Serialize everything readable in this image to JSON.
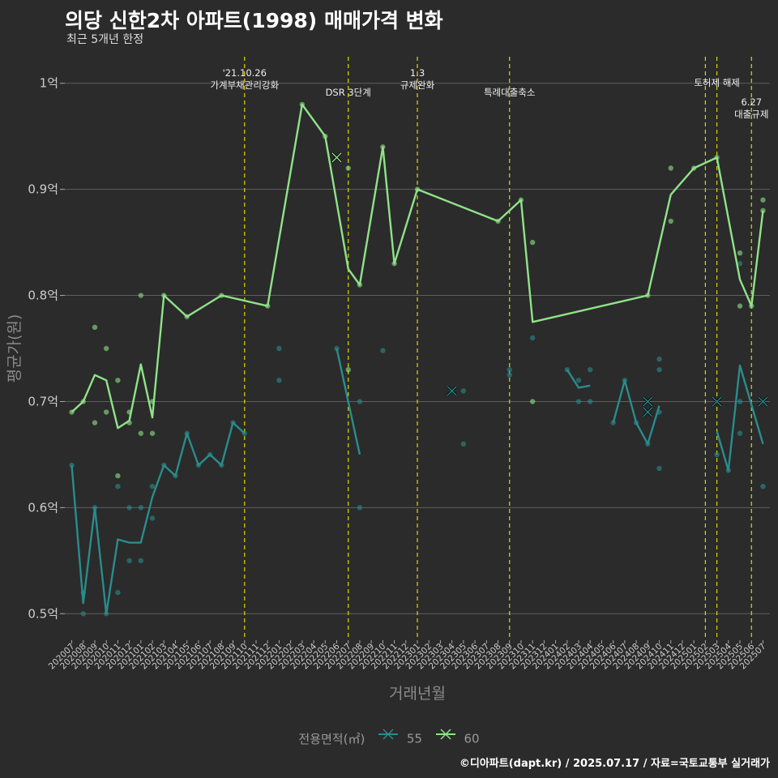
{
  "header": {
    "title": "의당 신한2차 아파트(1998) 매매가격 변화",
    "subtitle": "최근 5개년 한정",
    "caption": "©디아파트(dapt.kr) / 2025.07.17 / 자료=국토교통부 실거래가"
  },
  "legend": {
    "title": "전용면적(㎡)"
  },
  "chart_data": {
    "type": "line",
    "xlabel": "거래년월",
    "ylabel": "평균가(원)",
    "ylim": [
      0.475,
      1.025
    ],
    "y_ticks": [
      0.5,
      0.6,
      0.7,
      0.8,
      0.9,
      1.0
    ],
    "y_tick_labels": [
      "0.5억",
      "0.6억",
      "0.7억",
      "0.8억",
      "0.9억",
      "1억"
    ],
    "categories": [
      "202007",
      "202008",
      "202009",
      "202010",
      "202011",
      "202012",
      "202101",
      "202102",
      "202103",
      "202104",
      "202105",
      "202106",
      "202107",
      "202108",
      "202109",
      "202110",
      "202111",
      "202112",
      "202201",
      "202202",
      "202203",
      "202204",
      "202205",
      "202206",
      "202207",
      "202208",
      "202209",
      "202210",
      "202211",
      "202212",
      "202301",
      "202302",
      "202303",
      "202304",
      "202305",
      "202306",
      "202307",
      "202308",
      "202309",
      "202310",
      "202311",
      "202312",
      "202401",
      "202402",
      "202403",
      "202404",
      "202405",
      "202406",
      "202407",
      "202408",
      "202409",
      "202410",
      "202411",
      "202412",
      "202501",
      "202502",
      "202503",
      "202504",
      "202505",
      "202506",
      "202507"
    ],
    "series": [
      {
        "name": "55",
        "color": "#2a8c8c",
        "line": [
          [
            [
              "202007",
              0.64
            ],
            [
              "202008",
              0.51
            ],
            [
              "202009",
              0.6
            ],
            [
              "202010",
              0.5
            ],
            [
              "202011",
              0.57
            ],
            [
              "202012",
              0.567
            ],
            [
              "202101",
              0.567
            ],
            [
              "202102",
              0.61
            ],
            [
              "202103",
              0.64
            ],
            [
              "202104",
              0.63
            ],
            [
              "202105",
              0.67
            ],
            [
              "202106",
              0.64
            ],
            [
              "202107",
              0.65
            ],
            [
              "202108",
              0.64
            ],
            [
              "202109",
              0.68
            ],
            [
              "202110",
              0.67
            ]
          ],
          [
            [
              "202206",
              0.75
            ],
            [
              "202208",
              0.65
            ]
          ],
          [
            [
              "202402",
              0.73
            ],
            [
              "202403",
              0.713
            ],
            [
              "202404",
              0.715
            ]
          ],
          [
            [
              "202406",
              0.68
            ],
            [
              "202407",
              0.72
            ],
            [
              "202408",
              0.68
            ],
            [
              "202409",
              0.66
            ],
            [
              "202410",
              0.696
            ]
          ],
          [
            [
              "202503",
              0.672
            ],
            [
              "202504",
              0.635
            ],
            [
              "202505",
              0.734
            ],
            [
              "202507",
              0.66
            ]
          ]
        ],
        "points": [
          [
            "202007",
            0.64
          ],
          [
            "202008",
            0.5
          ],
          [
            "202008",
            0.52
          ],
          [
            "202009",
            0.6
          ],
          [
            "202010",
            0.5
          ],
          [
            "202011",
            0.62
          ],
          [
            "202011",
            0.52
          ],
          [
            "202012",
            0.6
          ],
          [
            "202012",
            0.55
          ],
          [
            "202101",
            0.6
          ],
          [
            "202101",
            0.55
          ],
          [
            "202102",
            0.62
          ],
          [
            "202102",
            0.59
          ],
          [
            "202103",
            0.64
          ],
          [
            "202104",
            0.63
          ],
          [
            "202105",
            0.67
          ],
          [
            "202106",
            0.64
          ],
          [
            "202107",
            0.65
          ],
          [
            "202108",
            0.64
          ],
          [
            "202109",
            0.68
          ],
          [
            "202110",
            0.67
          ],
          [
            "202201",
            0.75
          ],
          [
            "202201",
            0.72
          ],
          [
            "202206",
            0.75
          ],
          [
            "202208",
            0.7
          ],
          [
            "202208",
            0.6
          ],
          [
            "202210",
            0.748
          ],
          [
            "202304",
            0.71
          ],
          [
            "202305",
            0.71
          ],
          [
            "202305",
            0.66
          ],
          [
            "202309",
            0.73
          ],
          [
            "202309",
            0.725
          ],
          [
            "202311",
            0.76
          ],
          [
            "202402",
            0.73
          ],
          [
            "202403",
            0.72
          ],
          [
            "202403",
            0.7
          ],
          [
            "202404",
            0.73
          ],
          [
            "202404",
            0.7
          ],
          [
            "202406",
            0.68
          ],
          [
            "202407",
            0.72
          ],
          [
            "202408",
            0.68
          ],
          [
            "202409",
            0.66
          ],
          [
            "202410",
            0.74
          ],
          [
            "202410",
            0.73
          ],
          [
            "202410",
            0.69
          ],
          [
            "202410",
            0.637
          ],
          [
            "202503",
            0.65
          ],
          [
            "202504",
            0.635
          ],
          [
            "202505",
            0.7
          ],
          [
            "202505",
            0.67
          ],
          [
            "202505",
            0.83
          ],
          [
            "202507",
            0.7
          ],
          [
            "202507",
            0.62
          ]
        ],
        "cancelled": [
          [
            "202304",
            0.71
          ],
          [
            "202409",
            0.7
          ],
          [
            "202409",
            0.69
          ],
          [
            "202503",
            0.7
          ],
          [
            "202507",
            0.7
          ]
        ]
      },
      {
        "name": "60",
        "color": "#8fe388",
        "line": [
          [
            [
              "202007",
              0.69
            ],
            [
              "202008",
              0.7
            ],
            [
              "202009",
              0.725
            ],
            [
              "202010",
              0.72
            ],
            [
              "202011",
              0.675
            ],
            [
              "202012",
              0.682
            ],
            [
              "202101",
              0.735
            ],
            [
              "202102",
              0.685
            ],
            [
              "202103",
              0.8
            ],
            [
              "202105",
              0.78
            ],
            [
              "202108",
              0.8
            ],
            [
              "202112",
              0.79
            ],
            [
              "202203",
              0.98
            ],
            [
              "202205",
              0.95
            ],
            [
              "202207",
              0.825
            ],
            [
              "202208",
              0.81
            ],
            [
              "202210",
              0.94
            ],
            [
              "202211",
              0.83
            ],
            [
              "202301",
              0.9
            ],
            [
              "202308",
              0.87
            ],
            [
              "202310",
              0.89
            ],
            [
              "202311",
              0.775
            ],
            [
              "202409",
              0.8
            ],
            [
              "202411",
              0.895
            ],
            [
              "202501",
              0.92
            ],
            [
              "202503",
              0.93
            ],
            [
              "202505",
              0.815
            ],
            [
              "202506",
              0.79
            ],
            [
              "202507",
              0.88
            ]
          ]
        ],
        "points": [
          [
            "202007",
            0.69
          ],
          [
            "202008",
            0.7
          ],
          [
            "202009",
            0.77
          ],
          [
            "202009",
            0.68
          ],
          [
            "202010",
            0.75
          ],
          [
            "202010",
            0.69
          ],
          [
            "202011",
            0.72
          ],
          [
            "202011",
            0.63
          ],
          [
            "202012",
            0.69
          ],
          [
            "202012",
            0.68
          ],
          [
            "202101",
            0.8
          ],
          [
            "202101",
            0.67
          ],
          [
            "202102",
            0.7
          ],
          [
            "202102",
            0.67
          ],
          [
            "202103",
            0.8
          ],
          [
            "202105",
            0.78
          ],
          [
            "202108",
            0.8
          ],
          [
            "202112",
            0.79
          ],
          [
            "202203",
            0.98
          ],
          [
            "202205",
            0.95
          ],
          [
            "202207",
            0.92
          ],
          [
            "202207",
            0.73
          ],
          [
            "202208",
            0.81
          ],
          [
            "202210",
            0.94
          ],
          [
            "202211",
            0.83
          ],
          [
            "202301",
            0.9
          ],
          [
            "202308",
            0.87
          ],
          [
            "202310",
            0.89
          ],
          [
            "202311",
            0.85
          ],
          [
            "202311",
            0.7
          ],
          [
            "202409",
            0.8
          ],
          [
            "202411",
            0.92
          ],
          [
            "202411",
            0.87
          ],
          [
            "202501",
            0.92
          ],
          [
            "202503",
            0.93
          ],
          [
            "202505",
            0.84
          ],
          [
            "202505",
            0.79
          ],
          [
            "202506",
            0.79
          ],
          [
            "202507",
            0.89
          ],
          [
            "202507",
            0.88
          ]
        ],
        "cancelled": [
          [
            "202206",
            0.93
          ]
        ]
      }
    ],
    "events": [
      {
        "x": "202110",
        "label": "'21.10.26\n가계부채관리강화",
        "row": 0
      },
      {
        "x": "202207",
        "label": "DSR 3단계",
        "row": 2
      },
      {
        "x": "202301",
        "label": "1.3\n규제완화",
        "row": 0
      },
      {
        "x": "202309",
        "label": "특례대출축소",
        "row": 2
      },
      {
        "x": "202502",
        "label": "",
        "row": 0
      },
      {
        "x": "202503",
        "label": "토허제 해제",
        "row": 1
      },
      {
        "x": "202506",
        "label": "6.27\n대출규제",
        "row": 3
      }
    ]
  }
}
